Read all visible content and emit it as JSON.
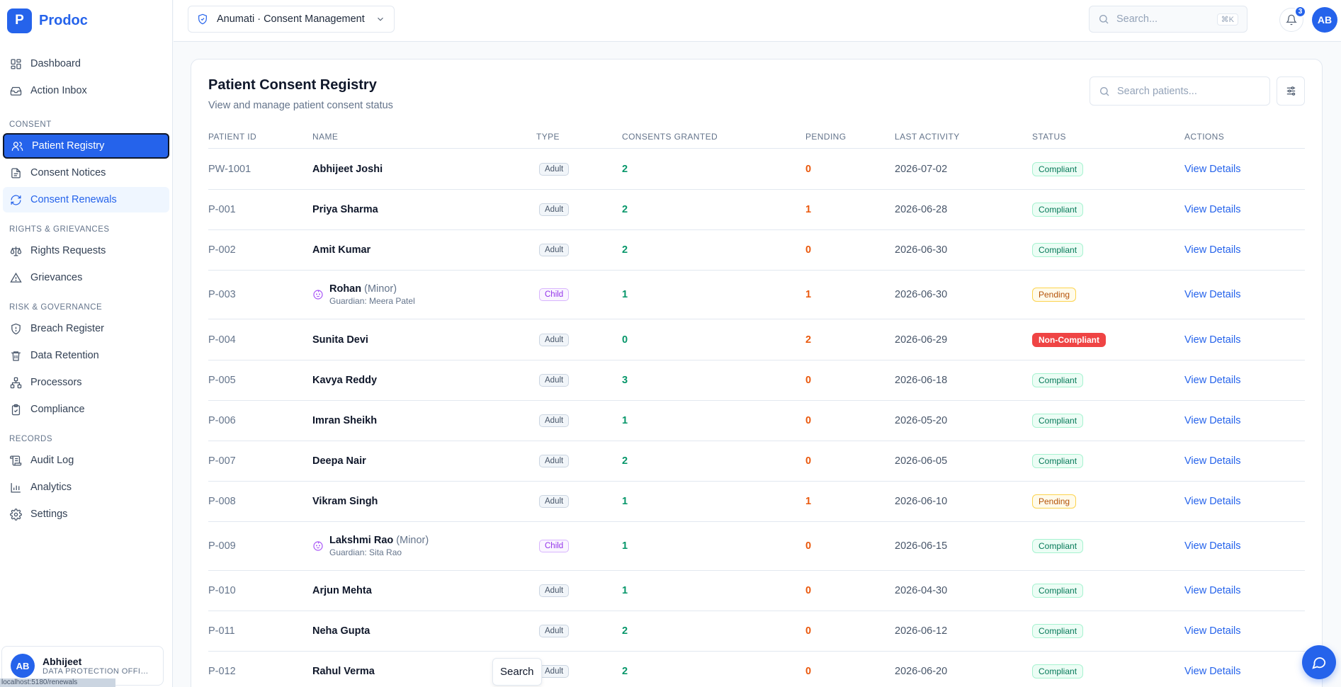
{
  "brand": {
    "logo_letter": "P",
    "name": "Prodoc"
  },
  "sidebar": {
    "items": [
      {
        "label": "Dashboard"
      },
      {
        "label": "Action Inbox"
      }
    ],
    "sections": [
      {
        "title": "CONSENT",
        "items": [
          {
            "label": "Patient Registry"
          },
          {
            "label": "Consent Notices"
          },
          {
            "label": "Consent Renewals"
          }
        ]
      },
      {
        "title": "RIGHTS & GRIEVANCES",
        "items": [
          {
            "label": "Rights Requests"
          },
          {
            "label": "Grievances"
          }
        ]
      },
      {
        "title": "RISK & GOVERNANCE",
        "items": [
          {
            "label": "Breach Register"
          },
          {
            "label": "Data Retention"
          },
          {
            "label": "Processors"
          },
          {
            "label": "Compliance"
          }
        ]
      },
      {
        "title": "RECORDS",
        "items": [
          {
            "label": "Audit Log"
          },
          {
            "label": "Analytics"
          },
          {
            "label": "Settings"
          }
        ]
      }
    ],
    "user": {
      "initials": "AB",
      "name": "Abhijeet",
      "role": "DATA PROTECTION OFFICER"
    },
    "status_url": "localhost:5180/renewals"
  },
  "topbar": {
    "workspace": "Anumati · Consent Management",
    "search_placeholder": "Search...",
    "shortcut": "⌘K",
    "notification_count": "3",
    "avatar_initials": "AB"
  },
  "main": {
    "title": "Patient Consent Registry",
    "subtitle": "View and manage patient consent status",
    "search_placeholder": "Search patients...",
    "columns": [
      "PATIENT ID",
      "NAME",
      "TYPE",
      "CONSENTS GRANTED",
      "PENDING",
      "LAST ACTIVITY",
      "STATUS",
      "ACTIONS"
    ],
    "rows": [
      {
        "id": "PW-1001",
        "name": "Abhijeet Joshi",
        "type": "Adult",
        "granted": "2",
        "pending": "0",
        "activity": "2026-07-02",
        "status": "Compliant",
        "action": "View Details"
      },
      {
        "id": "P-001",
        "name": "Priya Sharma",
        "type": "Adult",
        "granted": "2",
        "pending": "1",
        "activity": "2026-06-28",
        "status": "Compliant",
        "action": "View Details"
      },
      {
        "id": "P-002",
        "name": "Amit Kumar",
        "type": "Adult",
        "granted": "2",
        "pending": "0",
        "activity": "2026-06-30",
        "status": "Compliant",
        "action": "View Details"
      },
      {
        "id": "P-003",
        "name": "Rohan",
        "minor_tag": "(Minor)",
        "guardian": "Guardian: Meera Patel",
        "type": "Child",
        "granted": "1",
        "pending": "1",
        "activity": "2026-06-30",
        "status": "Pending",
        "action": "View Details"
      },
      {
        "id": "P-004",
        "name": "Sunita Devi",
        "type": "Adult",
        "granted": "0",
        "pending": "2",
        "activity": "2026-06-29",
        "status": "Non-Compliant",
        "action": "View Details"
      },
      {
        "id": "P-005",
        "name": "Kavya Reddy",
        "type": "Adult",
        "granted": "3",
        "pending": "0",
        "activity": "2026-06-18",
        "status": "Compliant",
        "action": "View Details"
      },
      {
        "id": "P-006",
        "name": "Imran Sheikh",
        "type": "Adult",
        "granted": "1",
        "pending": "0",
        "activity": "2026-05-20",
        "status": "Compliant",
        "action": "View Details"
      },
      {
        "id": "P-007",
        "name": "Deepa Nair",
        "type": "Adult",
        "granted": "2",
        "pending": "0",
        "activity": "2026-06-05",
        "status": "Compliant",
        "action": "View Details"
      },
      {
        "id": "P-008",
        "name": "Vikram Singh",
        "type": "Adult",
        "granted": "1",
        "pending": "1",
        "activity": "2026-06-10",
        "status": "Pending",
        "action": "View Details"
      },
      {
        "id": "P-009",
        "name": "Lakshmi Rao",
        "minor_tag": "(Minor)",
        "guardian": "Guardian: Sita Rao",
        "type": "Child",
        "granted": "1",
        "pending": "0",
        "activity": "2026-06-15",
        "status": "Compliant",
        "action": "View Details"
      },
      {
        "id": "P-010",
        "name": "Arjun Mehta",
        "type": "Adult",
        "granted": "1",
        "pending": "0",
        "activity": "2026-04-30",
        "status": "Compliant",
        "action": "View Details"
      },
      {
        "id": "P-011",
        "name": "Neha Gupta",
        "type": "Adult",
        "granted": "2",
        "pending": "0",
        "activity": "2026-06-12",
        "status": "Compliant",
        "action": "View Details"
      },
      {
        "id": "P-012",
        "name": "Rahul Verma",
        "type": "Adult",
        "granted": "2",
        "pending": "0",
        "activity": "2026-06-20",
        "status": "Compliant",
        "action": "View Details"
      }
    ]
  },
  "tooltip": "Search",
  "colors": {
    "accent": "#2563eb",
    "granted": "#059669",
    "pending": "#ea580c",
    "non_compliant": "#ef4444",
    "child": "#9333ea"
  }
}
